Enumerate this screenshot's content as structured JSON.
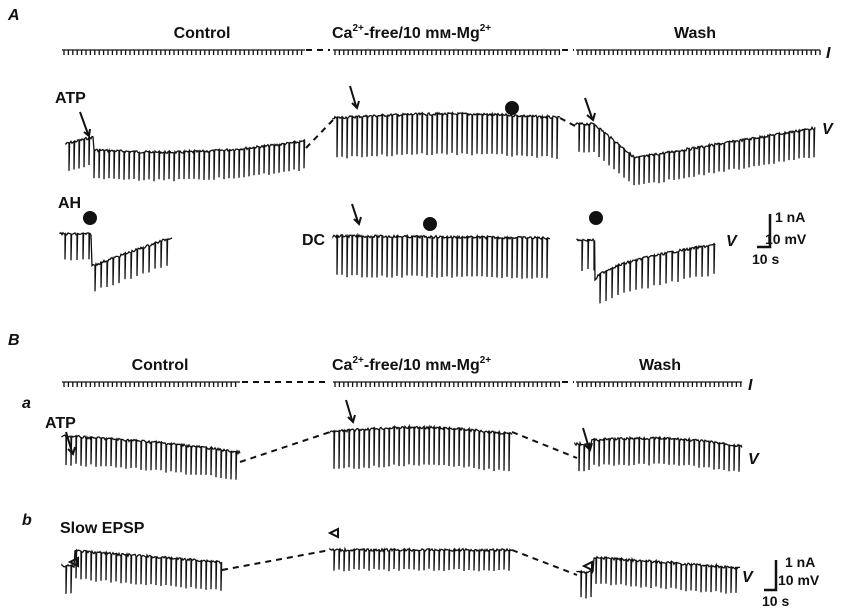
{
  "panel_a": {
    "label": "A",
    "control": "Control",
    "ca_free": {
      "ca": "Ca",
      "sup1": "2+",
      "mid": "-free/10 mм-Mg",
      "sup2": "2+"
    },
    "wash": "Wash",
    "current": "I",
    "atp": "ATP",
    "voltage": "V",
    "ah": "AH",
    "dc": "DC",
    "voltage2": "V",
    "scale": {
      "current": "1 nA",
      "voltage": "10 mV",
      "time": "10 s"
    }
  },
  "panel_b": {
    "label": "B",
    "control": "Control",
    "ca_free": {
      "ca": "Ca",
      "sup1": "2+",
      "mid": "-free/10 mм-Mg",
      "sup2": "2+"
    },
    "wash": "Wash",
    "current": "I",
    "sub_a": "a",
    "atp": "ATP",
    "voltage_a": "V",
    "sub_b": "b",
    "slow_epsp": "Slow EPSP",
    "voltage_b": "V",
    "scale": {
      "current": "1 nA",
      "voltage": "10 mV",
      "time": "10 s"
    }
  }
}
